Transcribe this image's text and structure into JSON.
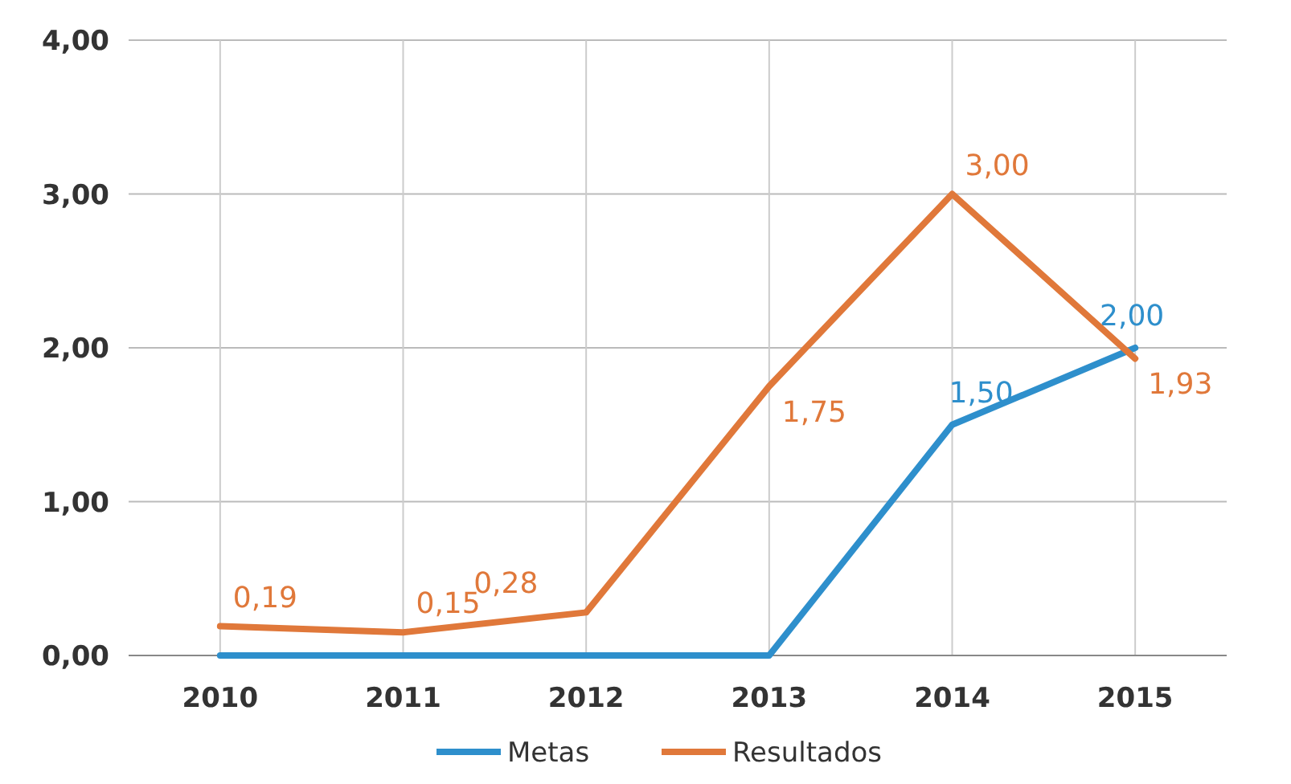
{
  "chart_data": {
    "type": "line",
    "categories": [
      "2010",
      "2011",
      "2012",
      "2013",
      "2014",
      "2015"
    ],
    "series": [
      {
        "name": "Metas",
        "color": "#2e8fcc",
        "values": [
          0,
          0,
          0,
          0,
          1.5,
          2
        ],
        "value_labels": [
          null,
          null,
          null,
          null,
          "1,50",
          "2,00"
        ]
      },
      {
        "name": "Resultados",
        "color": "#e0783a",
        "values": [
          0.19,
          0.15,
          0.28,
          1.75,
          3,
          1.93
        ],
        "value_labels": [
          "0,19",
          "0,15",
          "0,28",
          "1,75",
          "3,00",
          "1,93"
        ]
      }
    ],
    "ylim": [
      0,
      4
    ],
    "yticks": [
      {
        "value": 0,
        "label": "0,00"
      },
      {
        "value": 1,
        "label": "1,00"
      },
      {
        "value": 2,
        "label": "2,00"
      },
      {
        "value": 3,
        "label": "3,00"
      },
      {
        "value": 4,
        "label": "4,00"
      }
    ],
    "grid": true,
    "legend": "bottom",
    "marker": "none",
    "line_style": "solid"
  }
}
